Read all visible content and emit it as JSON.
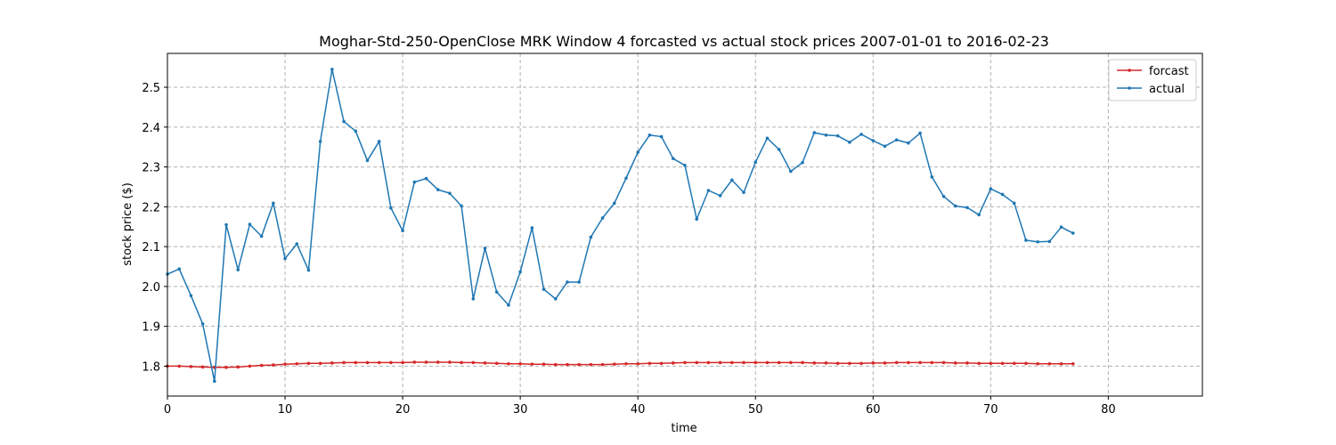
{
  "chart_data": {
    "type": "line",
    "title": "Moghar-Std-250-OpenClose MRK Window 4 forcasted vs actual stock prices 2007-01-01 to 2016-02-23",
    "xlabel": "time",
    "ylabel": "stock price ($)",
    "xlim": [
      0,
      88
    ],
    "ylim": [
      1.725,
      2.585
    ],
    "xticks": [
      0,
      10,
      20,
      30,
      40,
      50,
      60,
      70,
      80
    ],
    "yticks": [
      1.8,
      1.9,
      2.0,
      2.1,
      2.2,
      2.3,
      2.4,
      2.5
    ],
    "xtick_labels": [
      "0",
      "10",
      "20",
      "30",
      "40",
      "50",
      "60",
      "70",
      "80"
    ],
    "ytick_labels": [
      "1.8",
      "1.9",
      "2.0",
      "2.1",
      "2.2",
      "2.3",
      "2.4",
      "2.5"
    ],
    "grid": true,
    "legend_position": "top-right",
    "series": [
      {
        "name": "forcast",
        "color": "#d62728",
        "values": [
          1.8,
          1.8,
          1.799,
          1.798,
          1.797,
          1.797,
          1.798,
          1.8,
          1.802,
          1.803,
          1.805,
          1.806,
          1.807,
          1.807,
          1.808,
          1.809,
          1.809,
          1.809,
          1.809,
          1.809,
          1.809,
          1.81,
          1.81,
          1.81,
          1.81,
          1.809,
          1.809,
          1.808,
          1.807,
          1.806,
          1.806,
          1.805,
          1.805,
          1.804,
          1.804,
          1.804,
          1.804,
          1.804,
          1.805,
          1.806,
          1.806,
          1.807,
          1.807,
          1.808,
          1.809,
          1.809,
          1.809,
          1.809,
          1.809,
          1.809,
          1.809,
          1.809,
          1.809,
          1.809,
          1.809,
          1.808,
          1.808,
          1.807,
          1.807,
          1.807,
          1.808,
          1.808,
          1.809,
          1.809,
          1.809,
          1.809,
          1.809,
          1.808,
          1.808,
          1.807,
          1.807,
          1.807,
          1.807,
          1.807,
          1.806,
          1.806,
          1.806,
          1.806
        ]
      },
      {
        "name": "actual",
        "color": "#1f77b4",
        "values": [
          2.031,
          2.044,
          1.977,
          1.906,
          1.762,
          2.155,
          2.042,
          2.156,
          2.126,
          2.209,
          2.07,
          2.107,
          2.041,
          2.364,
          2.545,
          2.414,
          2.39,
          2.316,
          2.364,
          2.197,
          2.14,
          2.262,
          2.271,
          2.243,
          2.234,
          2.202,
          1.969,
          2.096,
          1.986,
          1.953,
          2.037,
          2.147,
          1.993,
          1.969,
          2.011,
          2.011,
          2.124,
          2.172,
          2.209,
          2.272,
          2.337,
          2.38,
          2.376,
          2.321,
          2.304,
          2.169,
          2.241,
          2.228,
          2.267,
          2.236,
          2.312,
          2.372,
          2.344,
          2.289,
          2.311,
          2.386,
          2.38,
          2.378,
          2.362,
          2.382,
          2.366,
          2.352,
          2.368,
          2.36,
          2.385,
          2.275,
          2.226,
          2.202,
          2.198,
          2.18,
          2.245,
          2.231,
          2.209,
          2.116,
          2.112,
          2.113,
          2.149,
          2.134
        ]
      }
    ]
  }
}
